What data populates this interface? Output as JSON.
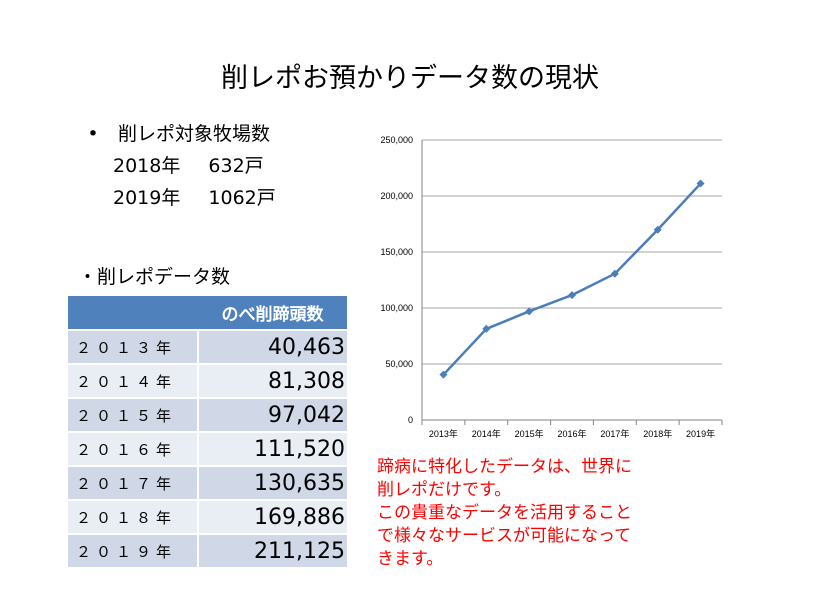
{
  "title": "削レポお預かりデータ数の現状",
  "farms": {
    "bullet": "•",
    "heading": "削レポ対象牧場数",
    "rows": [
      {
        "year": "2018年",
        "count": "632戸"
      },
      {
        "year": "2019年",
        "count": "1062戸"
      }
    ]
  },
  "data_heading": "・削レポデータ数",
  "table": {
    "header": "のべ削蹄頭数",
    "rows": [
      {
        "year": "２０１３年",
        "value": "40,463"
      },
      {
        "year": "２０１４年",
        "value": "81,308"
      },
      {
        "year": "２０１５年",
        "value": "97,042"
      },
      {
        "year": "２０１６年",
        "value": "111,520"
      },
      {
        "year": "２０１７年",
        "value": "130,635"
      },
      {
        "year": "２０１８年",
        "value": "169,886"
      },
      {
        "year": "２０１９年",
        "value": "211,125"
      }
    ]
  },
  "note": [
    "蹄病に特化したデータは、世界に",
    "削レポだけです。",
    "この貴重なデータを活用すること",
    "で様々なサービスが可能になって",
    "きます。"
  ],
  "chart_data": {
    "type": "line",
    "categories": [
      "2013年",
      "2014年",
      "2015年",
      "2016年",
      "2017年",
      "2018年",
      "2019年"
    ],
    "series": [
      {
        "values": [
          40463,
          81308,
          97042,
          111520,
          130635,
          169886,
          211125
        ]
      }
    ],
    "ylim": [
      0,
      250000
    ],
    "yticks": [
      "0",
      "50,000",
      "100,000",
      "150,000",
      "200,000",
      "250,000"
    ],
    "grid": true,
    "legend": "none",
    "line_color": "#4a7ebb",
    "grid_color": "#a6a6a6"
  }
}
